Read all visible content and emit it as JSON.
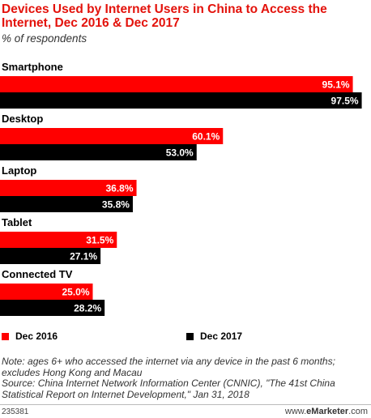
{
  "chart_data": {
    "type": "bar",
    "orientation": "horizontal",
    "title": "Devices Used by Internet Users in China to Access the Internet, Dec 2016 & Dec 2017",
    "subtitle": "% of respondents",
    "categories": [
      "Smartphone",
      "Desktop",
      "Laptop",
      "Tablet",
      "Connected TV"
    ],
    "series": [
      {
        "name": "Dec 2016",
        "color": "#ff0000",
        "values": [
          95.1,
          60.1,
          36.8,
          31.5,
          25.0
        ]
      },
      {
        "name": "Dec 2017",
        "color": "#000000",
        "values": [
          97.5,
          53.0,
          35.8,
          27.1,
          28.2
        ]
      }
    ],
    "value_suffix": "%",
    "xlim": [
      0,
      100
    ],
    "grid": false,
    "legend_position": "bottom"
  },
  "footer": {
    "note": "Note: ages 6+ who accessed the internet via any device in the past 6 months; excludes Hong Kong and Macau",
    "source": "Source: China Internet Network Information Center (CNNIC), \"The 41st China Statistical Report on Internet Development,\" Jan 31, 2018",
    "chart_id": "235381",
    "brand_prefix": "www.",
    "brand_name": "eMarketer",
    "brand_suffix": ".com"
  }
}
